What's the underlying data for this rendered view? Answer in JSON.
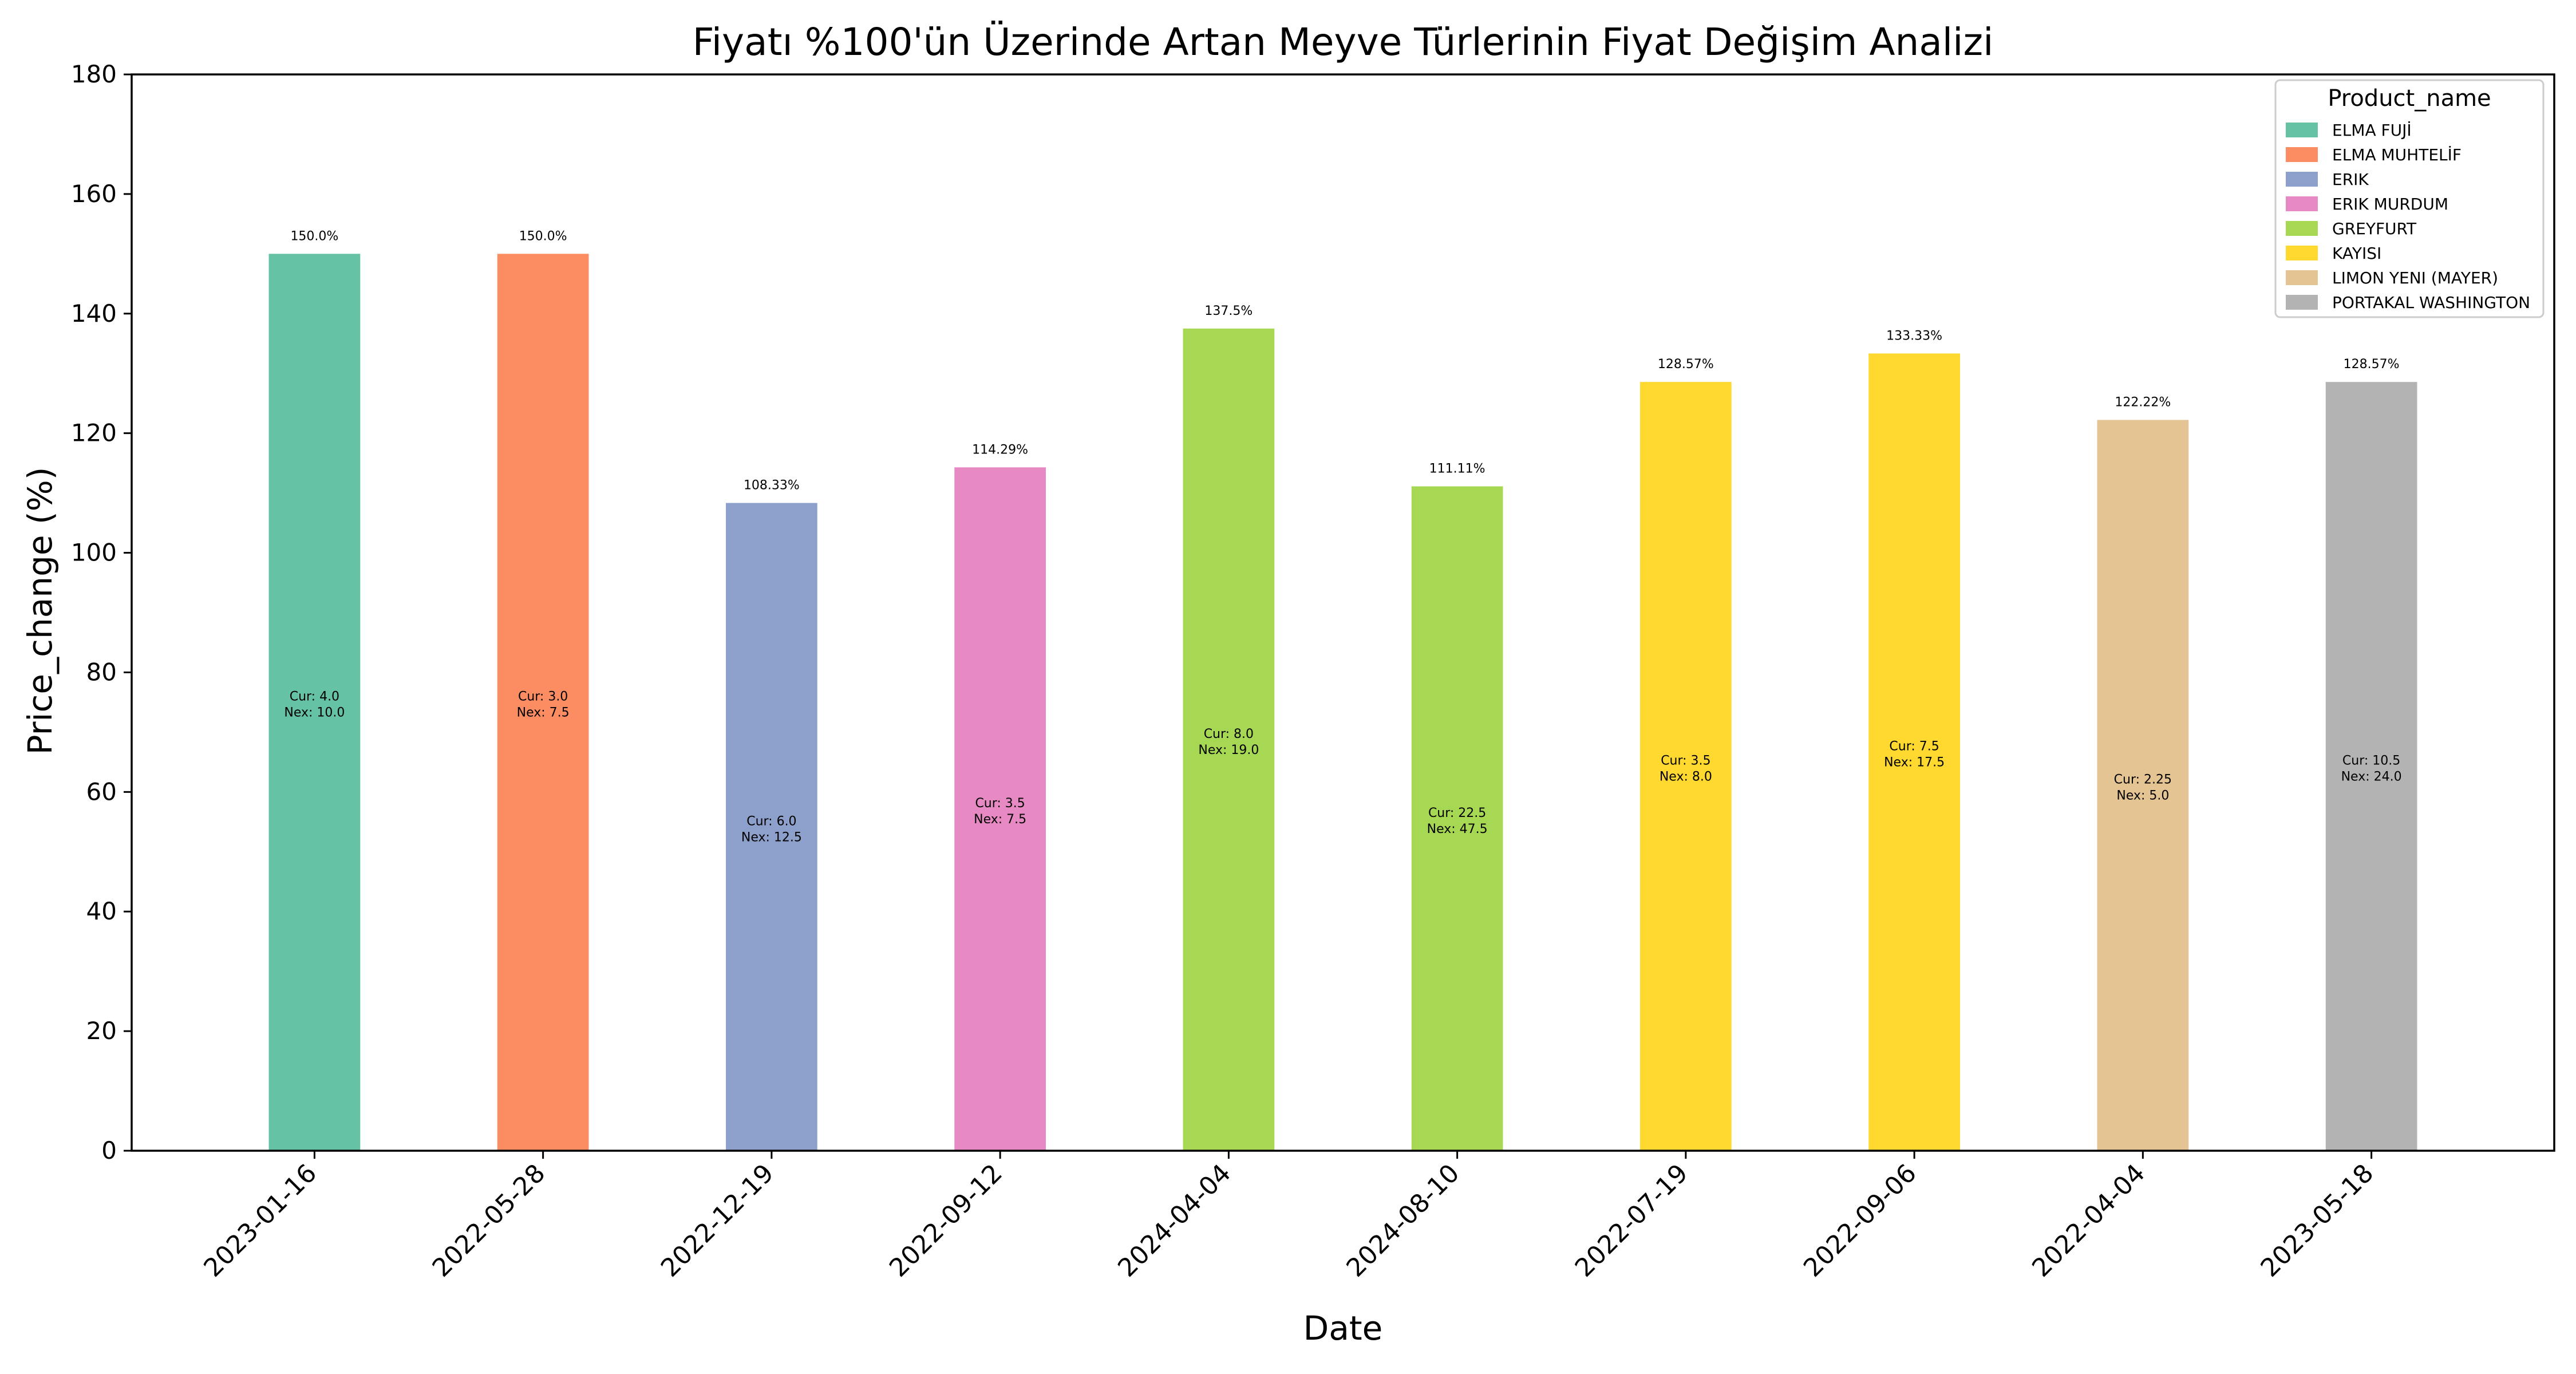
{
  "chart_data": {
    "type": "bar",
    "title": "Fiyatı %100'ün Üzerinde Artan Meyve Türlerinin Fiyat Değişim Analizi",
    "xlabel": "Date",
    "ylabel": "Price_change (%)",
    "ylim": [
      0,
      180
    ],
    "yticks": [
      0,
      20,
      40,
      60,
      80,
      100,
      120,
      140,
      160,
      180
    ],
    "grid": false,
    "legend": {
      "title": "Product_name",
      "placement": "top-right",
      "entries": [
        {
          "name": "ELMA FUJİ",
          "color": "#66c2a5"
        },
        {
          "name": "ELMA MUHTELİF",
          "color": "#fc8d62"
        },
        {
          "name": "ERIK",
          "color": "#8da0cb"
        },
        {
          "name": "ERIK  MURDUM",
          "color": "#e78ac3"
        },
        {
          "name": "GREYFURT",
          "color": "#a6d854"
        },
        {
          "name": "KAYISI",
          "color": "#ffd92f"
        },
        {
          "name": "LIMON  YENI (MAYER)",
          "color": "#e5c494"
        },
        {
          "name": "PORTAKAL WASHINGTON",
          "color": "#b3b3b3"
        }
      ]
    },
    "bars": [
      {
        "date": "2023-01-16",
        "product": "ELMA FUJİ",
        "value": 150.0,
        "label": "150.0%",
        "cur_label": "Cur: 4.0",
        "nex_label": "Nex: 10.0"
      },
      {
        "date": "2022-05-28",
        "product": "ELMA MUHTELİF",
        "value": 150.0,
        "label": "150.0%",
        "cur_label": "Cur: 3.0",
        "nex_label": "Nex: 7.5"
      },
      {
        "date": "2022-12-19",
        "product": "ERIK",
        "value": 108.33,
        "label": "108.33%",
        "cur_label": "Cur: 6.0",
        "nex_label": "Nex: 12.5"
      },
      {
        "date": "2022-09-12",
        "product": "ERIK  MURDUM",
        "value": 114.29,
        "label": "114.29%",
        "cur_label": "Cur: 3.5",
        "nex_label": "Nex: 7.5"
      },
      {
        "date": "2024-04-04",
        "product": "GREYFURT",
        "value": 137.5,
        "label": "137.5%",
        "cur_label": "Cur: 8.0",
        "nex_label": "Nex: 19.0"
      },
      {
        "date": "2024-08-10",
        "product": "GREYFURT",
        "value": 111.11,
        "label": "111.11%",
        "cur_label": "Cur: 22.5",
        "nex_label": "Nex: 47.5"
      },
      {
        "date": "2022-07-19",
        "product": "KAYISI",
        "value": 128.57,
        "label": "128.57%",
        "cur_label": "Cur: 3.5",
        "nex_label": "Nex: 8.0"
      },
      {
        "date": "2022-09-06",
        "product": "KAYISI",
        "value": 133.33,
        "label": "133.33%",
        "cur_label": "Cur: 7.5",
        "nex_label": "Nex: 17.5"
      },
      {
        "date": "2022-04-04",
        "product": "LIMON  YENI (MAYER)",
        "value": 122.22,
        "label": "122.22%",
        "cur_label": "Cur: 2.25",
        "nex_label": "Nex: 5.0"
      },
      {
        "date": "2023-05-18",
        "product": "PORTAKAL WASHINGTON",
        "value": 128.57,
        "label": "128.57%",
        "cur_label": "Cur: 10.5",
        "nex_label": "Nex: 24.0"
      }
    ]
  }
}
